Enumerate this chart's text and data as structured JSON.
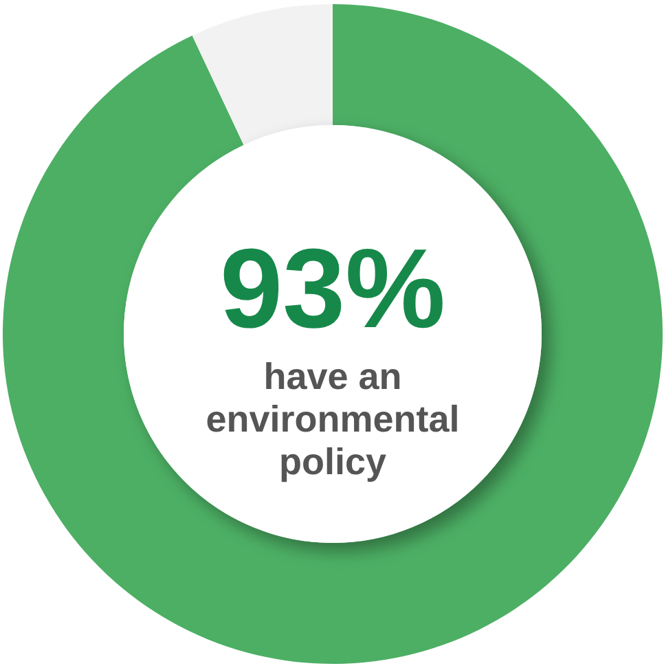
{
  "chart_data": {
    "type": "donut",
    "title": "93%",
    "subtitle": "have an environmental policy",
    "categories": [
      null,
      null
    ],
    "values": [
      93,
      7
    ],
    "colors": [
      "#4caf64",
      "#f2f2f2"
    ]
  }
}
